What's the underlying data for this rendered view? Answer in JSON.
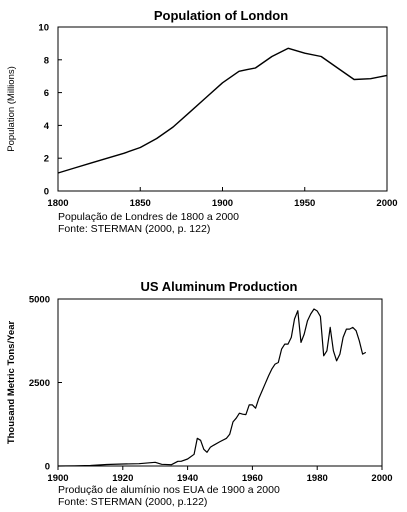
{
  "chart_data": [
    {
      "type": "line",
      "title": "Population of London",
      "xlabel": "",
      "ylabel": "Population (Millions)",
      "xlim": [
        1800,
        2000
      ],
      "ylim": [
        0,
        10
      ],
      "x_ticks": [
        1800,
        1850,
        1900,
        1950,
        2000
      ],
      "y_ticks": [
        0,
        2,
        4,
        6,
        8,
        10
      ],
      "grid": false,
      "series": [
        {
          "x": [
            1800,
            1810,
            1820,
            1830,
            1840,
            1850,
            1860,
            1870,
            1880,
            1890,
            1900,
            1910,
            1915,
            1920,
            1930,
            1940,
            1950,
            1960,
            1970,
            1980,
            1990,
            2000
          ],
          "values": [
            1.1,
            1.4,
            1.7,
            2.0,
            2.3,
            2.65,
            3.2,
            3.9,
            4.8,
            5.7,
            6.6,
            7.3,
            7.4,
            7.5,
            8.2,
            8.7,
            8.4,
            8.2,
            7.5,
            6.8,
            6.85,
            7.05
          ]
        }
      ],
      "caption": [
        "População de Londres de 1800 a 2000",
        "Fonte: STERMAN (2000, p. 122)"
      ]
    },
    {
      "type": "line",
      "title": "US Aluminum Production",
      "xlabel": "",
      "ylabel": "Thousand Metric Tons/Year",
      "xlim": [
        1900,
        2000
      ],
      "ylim": [
        0,
        5000
      ],
      "x_ticks": [
        1900,
        1920,
        1940,
        1960,
        1980,
        2000
      ],
      "y_ticks": [
        0,
        2500,
        5000
      ],
      "grid": false,
      "series": [
        {
          "x": [
            1900,
            1905,
            1910,
            1915,
            1920,
            1925,
            1930,
            1932,
            1935,
            1937,
            1938,
            1940,
            1942,
            1943,
            1944,
            1945,
            1946,
            1947,
            1948,
            1950,
            1952,
            1953,
            1954,
            1955,
            1956,
            1957,
            1958,
            1959,
            1960,
            1961,
            1962,
            1963,
            1964,
            1965,
            1966,
            1967,
            1968,
            1969,
            1970,
            1971,
            1972,
            1973,
            1974,
            1975,
            1976,
            1977,
            1978,
            1979,
            1980,
            1981,
            1982,
            1983,
            1984,
            1985,
            1986,
            1987,
            1988,
            1989,
            1990,
            1991,
            1992,
            1993,
            1994,
            1995
          ],
          "values": [
            0,
            5,
            15,
            45,
            60,
            70,
            110,
            50,
            40,
            140,
            140,
            210,
            350,
            830,
            770,
            500,
            410,
            560,
            620,
            730,
            830,
            950,
            1320,
            1430,
            1580,
            1550,
            1540,
            1830,
            1830,
            1730,
            2030,
            2250,
            2480,
            2700,
            2900,
            3050,
            3100,
            3500,
            3650,
            3650,
            3850,
            4400,
            4650,
            3700,
            3950,
            4350,
            4550,
            4700,
            4640,
            4480,
            3300,
            3450,
            4150,
            3450,
            3150,
            3350,
            3850,
            4100,
            4100,
            4150,
            4050,
            3750,
            3350,
            3400
          ]
        }
      ],
      "caption": [
        "Produção de alumínio nos EUA de 1900 a 2000",
        "Fonte: STERMAN (2000, p.122)"
      ]
    }
  ]
}
